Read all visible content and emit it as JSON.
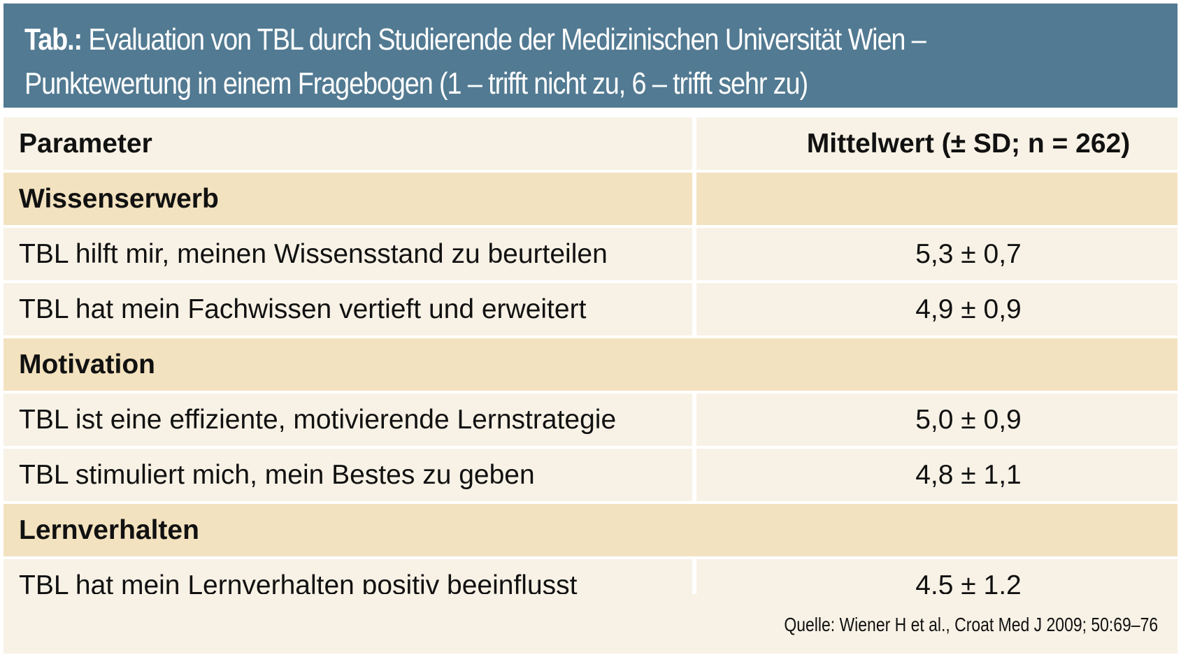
{
  "header": {
    "tab_label": "Tab.:",
    "title_line1": "Evaluation von TBL durch Studierende der Medizinischen Universität Wien –",
    "title_line2": "Punktewertung in einem Fragebogen (1 – trifft nicht zu, 6 – trifft sehr zu)"
  },
  "table": {
    "col_param": "Parameter",
    "col_value": "Mittelwert (± SD; n = 262)",
    "sections": [
      {
        "title": "Wissenserwerb",
        "items": [
          {
            "label": "TBL hilft mir, meinen Wissensstand zu beurteilen",
            "value": "5,3 ± 0,7"
          },
          {
            "label": "TBL hat mein Fachwissen vertieft und erweitert",
            "value": "4,9 ± 0,9"
          }
        ]
      },
      {
        "title": "Motivation",
        "items": [
          {
            "label": "TBL ist eine effiziente, motivierende Lernstrategie",
            "value": "5,0 ± 0,9"
          },
          {
            "label": "TBL stimuliert mich, mein Bestes zu geben",
            "value": "4,8 ± 1,1"
          }
        ]
      },
      {
        "title": "Lernverhalten",
        "items": [
          {
            "label": "TBL hat mein Lernverhalten positiv beeinflusst",
            "value": "4,5 ± 1,2"
          }
        ]
      }
    ]
  },
  "footer": {
    "source": "Quelle: Wiener H et al., Croat Med J 2009; 50:69–76"
  },
  "colors": {
    "header_bg": "#527a92",
    "section_bg": "#f3e2bf",
    "row_bg": "#f8f2e6"
  }
}
